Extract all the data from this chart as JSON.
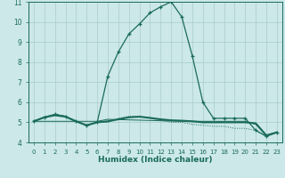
{
  "xlabel": "Humidex (Indice chaleur)",
  "xlim": [
    -0.5,
    23.5
  ],
  "ylim": [
    4,
    11
  ],
  "yticks": [
    4,
    5,
    6,
    7,
    8,
    9,
    10,
    11
  ],
  "xticks": [
    0,
    1,
    2,
    3,
    4,
    5,
    6,
    7,
    8,
    9,
    10,
    11,
    12,
    13,
    14,
    15,
    16,
    17,
    18,
    19,
    20,
    21,
    22,
    23
  ],
  "background_color": "#cce8e8",
  "grid_color": "#aacccc",
  "line_color": "#1a6b5a",
  "curve_main_x": [
    0,
    1,
    2,
    3,
    4,
    5,
    6,
    7,
    8,
    9,
    10,
    11,
    12,
    13,
    14,
    15,
    16,
    17,
    18,
    19,
    20,
    21,
    22,
    23
  ],
  "curve_main_y": [
    5.05,
    5.25,
    5.4,
    5.3,
    5.05,
    4.85,
    5.0,
    7.3,
    8.5,
    9.4,
    9.9,
    10.45,
    10.75,
    11.0,
    10.25,
    8.3,
    6.0,
    5.2,
    5.2,
    5.2,
    5.2,
    4.6,
    4.3,
    4.5
  ],
  "curve_dot_x": [
    0,
    1,
    2,
    3,
    4,
    5,
    6,
    7,
    8,
    9,
    10,
    11,
    12,
    13,
    14,
    15,
    16,
    17,
    18,
    19,
    20,
    21,
    22,
    23
  ],
  "curve_dot_y": [
    5.05,
    5.25,
    5.4,
    5.3,
    5.05,
    4.85,
    5.0,
    5.0,
    5.2,
    5.3,
    5.3,
    5.2,
    5.1,
    5.0,
    5.0,
    4.9,
    4.85,
    4.8,
    4.8,
    4.7,
    4.7,
    4.6,
    4.3,
    4.5
  ],
  "curve_flat1_x": [
    0,
    1,
    2,
    3,
    4,
    5,
    6,
    7,
    8,
    9,
    10,
    11,
    12,
    13,
    14,
    15,
    16,
    17,
    18,
    19,
    20,
    21,
    22,
    23
  ],
  "curve_flat1_y": [
    5.05,
    5.25,
    5.35,
    5.28,
    5.05,
    4.85,
    5.0,
    5.05,
    5.15,
    5.25,
    5.28,
    5.22,
    5.15,
    5.1,
    5.08,
    5.05,
    5.0,
    5.0,
    5.0,
    5.0,
    5.0,
    4.95,
    4.35,
    4.5
  ],
  "curve_flat2_x": [
    0,
    6,
    7,
    14,
    20,
    21,
    22,
    23
  ],
  "curve_flat2_y": [
    5.05,
    5.05,
    5.15,
    5.05,
    5.05,
    4.9,
    4.35,
    4.5
  ]
}
